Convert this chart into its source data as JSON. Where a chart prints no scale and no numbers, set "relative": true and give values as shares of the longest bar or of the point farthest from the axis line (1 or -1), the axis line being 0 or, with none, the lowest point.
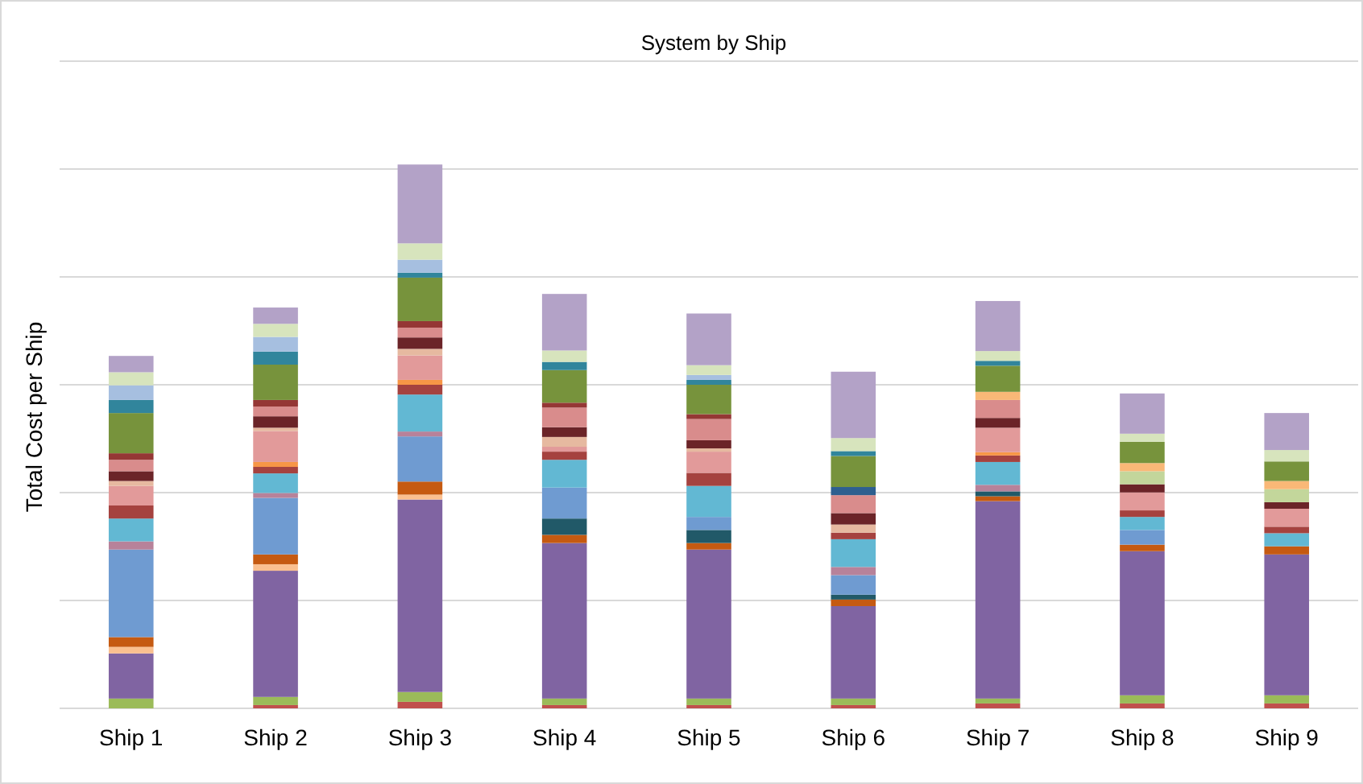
{
  "chart_data": {
    "type": "bar",
    "title": "System by Ship",
    "ylabel": "Total Cost per Ship",
    "stacked": true,
    "relative": true,
    "grid": "y",
    "categories": [
      "Ship 1",
      "Ship 2",
      "Ship 3",
      "Ship 4",
      "Ship 5",
      "Ship 6",
      "Ship 7",
      "Ship 8",
      "Ship 9"
    ],
    "series": [
      {
        "color": "#c0504d",
        "values": [
          0,
          0.006,
          0.012,
          0.006,
          0.006,
          0.006,
          0.009,
          0.009,
          0.009
        ]
      },
      {
        "color": "#9bbb59",
        "values": [
          0.018,
          0.015,
          0.018,
          0.012,
          0.012,
          0.012,
          0.009,
          0.015,
          0.015
        ]
      },
      {
        "color": "#8064a2",
        "values": [
          0.083,
          0.232,
          0.354,
          0.286,
          0.274,
          0.17,
          0.363,
          0.265,
          0.259
        ]
      },
      {
        "color": "#fac090",
        "values": [
          0.012,
          0.012,
          0.009,
          0,
          0,
          0,
          0,
          0,
          0
        ]
      },
      {
        "color": "#c55a11",
        "values": [
          0.018,
          0.018,
          0.024,
          0.015,
          0.012,
          0.012,
          0.009,
          0.012,
          0.015
        ]
      },
      {
        "color": "#215968",
        "values": [
          0,
          0,
          0,
          0.03,
          0.024,
          0.009,
          0.009,
          0,
          0
        ]
      },
      {
        "color": "#6f9bd1",
        "values": [
          0.161,
          0.104,
          0.083,
          0.057,
          0.024,
          0.036,
          0,
          0.027,
          0
        ]
      },
      {
        "color": "#b7829a",
        "values": [
          0.015,
          0.009,
          0.009,
          0,
          0,
          0.015,
          0.012,
          0,
          0
        ]
      },
      {
        "color": "#62b8d3",
        "values": [
          0.042,
          0.036,
          0.068,
          0.051,
          0.057,
          0.051,
          0.042,
          0.024,
          0.024
        ]
      },
      {
        "color": "#a5423f",
        "values": [
          0.024,
          0.012,
          0.018,
          0.015,
          0.024,
          0.012,
          0.012,
          0.012,
          0.012
        ]
      },
      {
        "color": "#f79646",
        "values": [
          0,
          0.009,
          0.009,
          0,
          0,
          0,
          0.006,
          0,
          0
        ]
      },
      {
        "color": "#e29a9a",
        "values": [
          0.036,
          0.057,
          0.045,
          0.009,
          0.039,
          0,
          0.045,
          0.033,
          0.033
        ]
      },
      {
        "color": "#e6b9a0",
        "values": [
          0.009,
          0.006,
          0.012,
          0.018,
          0.006,
          0.015,
          0,
          0,
          0
        ]
      },
      {
        "color": "#6b2428",
        "values": [
          0.018,
          0.021,
          0.021,
          0.018,
          0.015,
          0.021,
          0.018,
          0.015,
          0.012
        ]
      },
      {
        "color": "#c3d69b",
        "values": [
          0,
          0,
          0,
          0,
          0,
          0,
          0,
          0.024,
          0.024
        ]
      },
      {
        "color": "#d98c8c",
        "values": [
          0.021,
          0.018,
          0.018,
          0.036,
          0.039,
          0.033,
          0.033,
          0,
          0
        ]
      },
      {
        "color": "#953735",
        "values": [
          0.012,
          0.012,
          0.012,
          0.009,
          0.009,
          0,
          0,
          0,
          0
        ]
      },
      {
        "color": "#2e5f8f",
        "values": [
          0,
          0,
          0,
          0,
          0,
          0.015,
          0,
          0,
          0
        ]
      },
      {
        "color": "#f9b877",
        "values": [
          0,
          0,
          0,
          0,
          0,
          0,
          0.015,
          0.015,
          0.015
        ]
      },
      {
        "color": "#77933c",
        "values": [
          0.074,
          0.065,
          0.08,
          0.06,
          0.054,
          0.057,
          0.048,
          0.039,
          0.036
        ]
      },
      {
        "color": "#31859c",
        "values": [
          0.024,
          0.024,
          0.009,
          0.015,
          0.009,
          0.009,
          0.009,
          0,
          0
        ]
      },
      {
        "color": "#a6bfe0",
        "values": [
          0.027,
          0.027,
          0.024,
          0,
          0.009,
          0,
          0,
          0,
          0
        ]
      },
      {
        "color": "#d7e4bd",
        "values": [
          0.024,
          0.024,
          0.03,
          0.021,
          0.018,
          0.024,
          0.018,
          0.015,
          0.021
        ]
      },
      {
        "color": "#b3a2c7",
        "values": [
          0.03,
          0.03,
          0.145,
          0.104,
          0.095,
          0.122,
          0.092,
          0.074,
          0.068
        ]
      }
    ]
  }
}
